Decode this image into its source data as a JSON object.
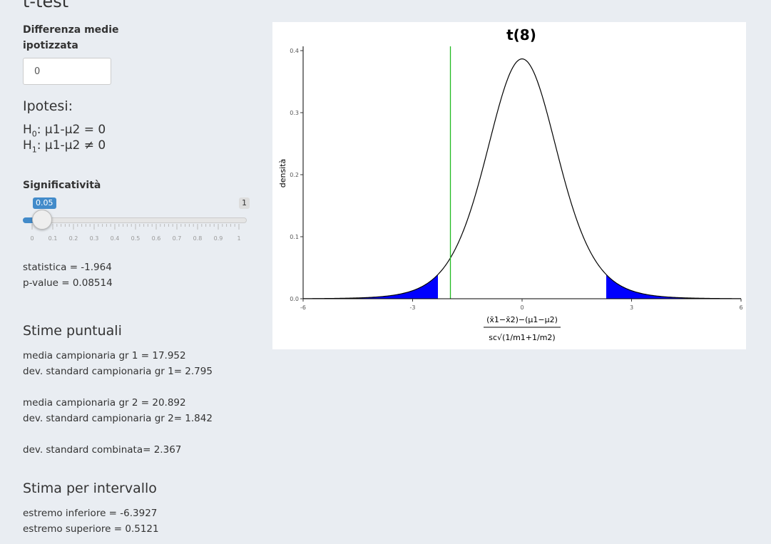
{
  "page_title": "t-test",
  "sidebar": {
    "diff_label_line1": "Differenza medie",
    "diff_label_line2": "ipotizzata",
    "diff_value": "0",
    "hypotheses_title": "Ipotesi:",
    "h0": {
      "prefix": "H",
      "sub": "0",
      "body": ": μ1-μ2 = 0"
    },
    "h1": {
      "prefix": "H",
      "sub": "1",
      "body": ": μ1-μ2 ≠ 0"
    },
    "significance_label": "Significatività",
    "slider": {
      "value": "0.05",
      "max": "1",
      "ticks": [
        "0",
        "0.1",
        "0.2",
        "0.3",
        "0.4",
        "0.5",
        "0.6",
        "0.7",
        "0.8",
        "0.9",
        "1"
      ]
    },
    "stat_line": "statistica = -1.964",
    "pvalue_line": "p-value = 0.08514",
    "point_estimates_title": "Stime puntuali",
    "mean1": "media campionaria gr 1 = 17.952",
    "sd1": "dev. standard campionaria gr 1= 2.795",
    "mean2": "media campionaria gr 2 = 20.892",
    "sd2": "dev. standard campionaria gr 2= 1.842",
    "pooled_sd": "dev. standard combinata= 2.367",
    "interval_title": "Stima per intervallo",
    "lower": "estremo inferiore = -6.3927",
    "upper": "estremo superiore = 0.5121"
  },
  "chart_data": {
    "type": "line",
    "title": "t(8)",
    "ylabel": "densità",
    "xlabel_numerator": "(x̄1−x̄2)−(μ1−μ2)",
    "xlabel_denominator": "sc√(1/m1+1/m2)",
    "df": 8,
    "xlim": [
      -6,
      6
    ],
    "ylim": [
      0,
      0.4
    ],
    "x_ticks": [
      "-6",
      "-3",
      "0",
      "3",
      "6"
    ],
    "y_ticks": [
      "0.0",
      "0.1",
      "0.2",
      "0.3",
      "0.4"
    ],
    "observed_statistic": -1.964,
    "critical_value": 2.306,
    "curve_color": "#000000",
    "rejection_color": "#0000ff",
    "statistic_line_color": "#22bb22"
  }
}
